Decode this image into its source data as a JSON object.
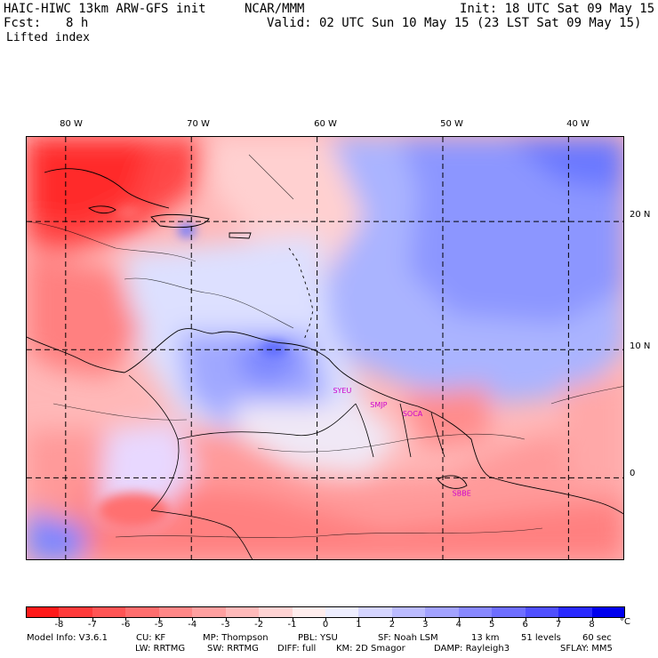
{
  "header": {
    "model_line": "HAIC-HIWC 13km ARW-GFS init",
    "org": "NCAR/MMM",
    "init": "Init: 18 UTC Sat 09 May 15",
    "fcst_label": "Fcst:",
    "fcst_value": "8 h",
    "valid": "Valid: 02 UTC Sun 10 May 15 (23 LST Sat 09 May 15)",
    "field": "Lifted index"
  },
  "map": {
    "longitude_labels": [
      "80 W",
      "70 W",
      "60 W",
      "50 W",
      "40 W"
    ],
    "longitudes": [
      -80,
      -70,
      -60,
      -50,
      -40
    ],
    "latitude_labels": [
      "20 N",
      "10 N",
      "0"
    ],
    "latitudes": [
      20,
      10,
      0
    ],
    "extent": {
      "lon_min": -83.1,
      "lon_max": -35.5,
      "lat_min": -6.5,
      "lat_max": 26.6
    },
    "stations": [
      {
        "id": "SYEU",
        "lon": -58.0,
        "lat": 6.6
      },
      {
        "id": "SMJP",
        "lon": -55.1,
        "lat": 5.5
      },
      {
        "id": "SOCA",
        "lon": -52.4,
        "lat": 4.8
      },
      {
        "id": "SBBE",
        "lon": -48.5,
        "lat": -1.4
      }
    ],
    "colors": {
      "grid": "#000000",
      "coast": "#000000",
      "station_label": "#cc00cc"
    }
  },
  "colorbar": {
    "labels": [
      "-8",
      "-7",
      "-6",
      "-5",
      "-4",
      "-3",
      "-2",
      "-1",
      "0",
      "1",
      "2",
      "3",
      "4",
      "5",
      "6",
      "7",
      "8"
    ],
    "unit": "°C",
    "colors": [
      "#ff1a1a",
      "#ff3b3b",
      "#ff5555",
      "#ff6e6e",
      "#ff8787",
      "#ffa0a0",
      "#ffbaba",
      "#ffd3d3",
      "#ffeded",
      "#eeeeff",
      "#d5d5ff",
      "#bbbbff",
      "#a2a2ff",
      "#8888ff",
      "#6e6eff",
      "#5050ff",
      "#2a2aff",
      "#0000ee"
    ]
  },
  "footer": {
    "line1": [
      "Model Info: V3.6.1",
      "CU: KF",
      "MP: Thompson",
      "PBL: YSU",
      "SF: Noah LSM",
      "13 km",
      "51 levels",
      "60 sec"
    ],
    "line2": [
      "LW: RRTMG",
      "SW: RRTMG",
      "DIFF: full",
      "KM: 2D Smagor",
      "DAMP: Rayleigh3",
      "SFLAY: MM5"
    ]
  }
}
